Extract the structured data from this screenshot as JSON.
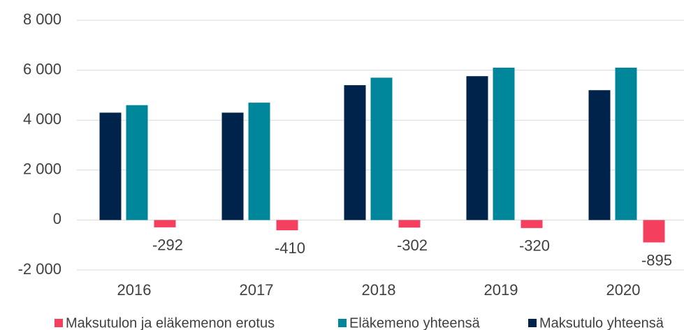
{
  "chart_data": {
    "type": "bar",
    "categories": [
      "2016",
      "2017",
      "2018",
      "2019",
      "2020"
    ],
    "series": [
      {
        "name": "Maksutulo yhteensä",
        "color": "#00234b",
        "values": [
          4300,
          4300,
          5400,
          5760,
          5200
        ]
      },
      {
        "name": "Eläkemeno yhteensä",
        "color": "#00869b",
        "values": [
          4600,
          4700,
          5700,
          6100,
          6100
        ]
      },
      {
        "name": "Maksutulon ja eläkemenon erotus",
        "color": "#f43f5e",
        "values": [
          -292,
          -410,
          -302,
          -320,
          -895
        ],
        "data_labels": true
      }
    ],
    "ylim": [
      -2000,
      8000
    ],
    "yticks": [
      {
        "value": -2000,
        "label": "-2 000"
      },
      0,
      {
        "value": 2000,
        "label": "2 000"
      },
      {
        "value": 4000,
        "label": "4 000"
      },
      {
        "value": 6000,
        "label": "6 000"
      },
      {
        "value": 8000,
        "label": "8 000"
      }
    ],
    "grid": true,
    "legend": "bottom"
  }
}
